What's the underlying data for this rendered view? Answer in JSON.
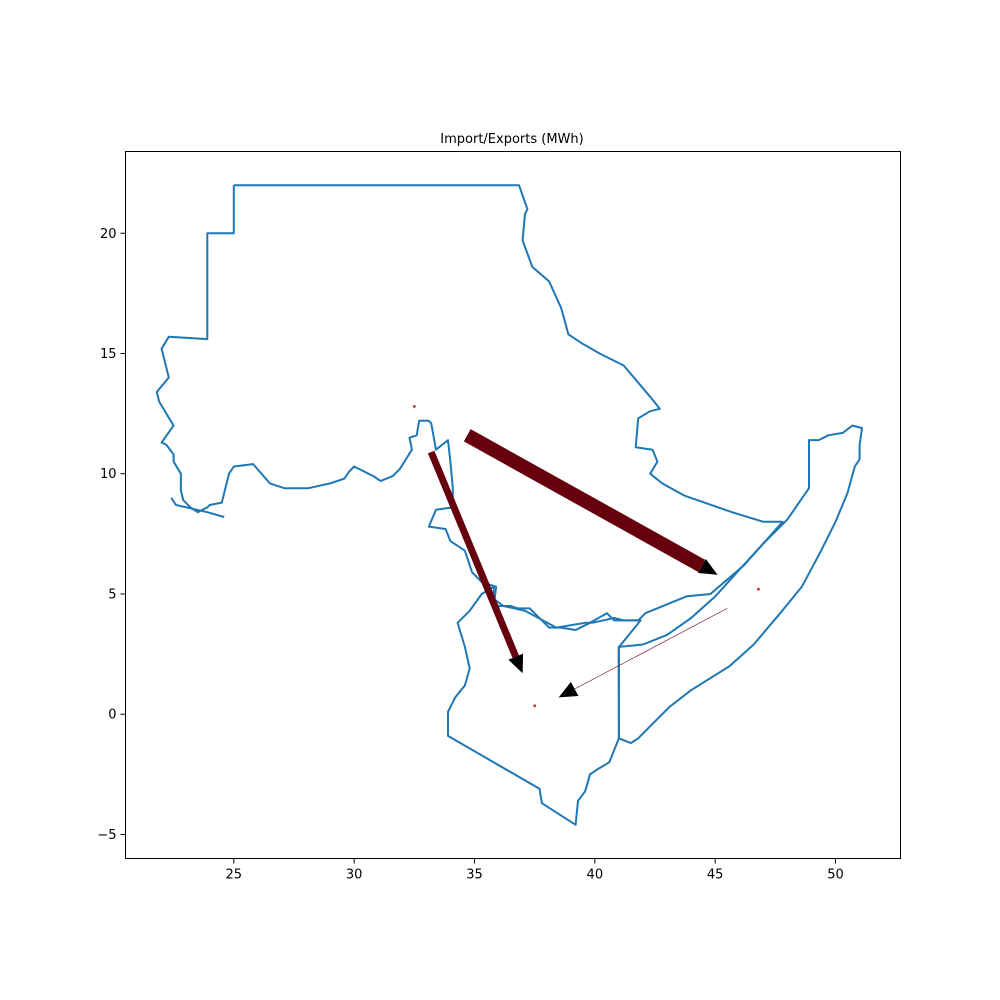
{
  "chart_data": {
    "type": "map",
    "title": "Import/Exports (MWh)",
    "xlim": [
      20.5,
      52.7
    ],
    "ylim": [
      -6.0,
      23.4
    ],
    "x_ticks": [
      {
        "value": 25,
        "label": "25"
      },
      {
        "value": 30,
        "label": "30"
      },
      {
        "value": 35,
        "label": "35"
      },
      {
        "value": 40,
        "label": "40"
      },
      {
        "value": 45,
        "label": "45"
      },
      {
        "value": 50,
        "label": "50"
      }
    ],
    "y_ticks": [
      {
        "value": -5,
        "label": "−5"
      },
      {
        "value": 0,
        "label": "0"
      },
      {
        "value": 5,
        "label": "5"
      },
      {
        "value": 10,
        "label": "10"
      },
      {
        "value": 15,
        "label": "15"
      },
      {
        "value": 20,
        "label": "20"
      }
    ],
    "boundary_color": "#1f77b4",
    "flow_color": "#67000d",
    "node_color": "#d62728",
    "boundaries": [
      {
        "name": "Sudan",
        "points": [
          [
            25,
            22
          ],
          [
            36.85,
            22
          ],
          [
            37.2,
            21
          ],
          [
            37.1,
            20.8
          ],
          [
            37.0,
            19.7
          ],
          [
            37.4,
            18.6
          ],
          [
            38.1,
            18.0
          ],
          [
            38.6,
            16.9
          ],
          [
            38.9,
            15.8
          ],
          [
            39.5,
            15.4
          ],
          [
            40.2,
            15.0
          ],
          [
            41.2,
            14.5
          ],
          [
            42.3,
            13.2
          ],
          [
            42.7,
            12.7
          ],
          [
            42.3,
            12.6
          ],
          [
            41.8,
            12.3
          ],
          [
            41.7,
            11.1
          ],
          [
            42.4,
            11.0
          ],
          [
            42.6,
            10.5
          ],
          [
            42.3,
            10.0
          ],
          [
            42.8,
            9.6
          ],
          [
            43.7,
            9.1
          ],
          [
            45.7,
            8.4
          ],
          [
            47.0,
            8.0
          ],
          [
            47.8,
            8.0
          ],
          [
            46.2,
            6.2
          ],
          [
            44.8,
            5.0
          ],
          [
            43.8,
            4.9
          ],
          [
            42.1,
            4.2
          ],
          [
            41.8,
            3.9
          ],
          [
            40.8,
            3.9
          ],
          [
            40.5,
            4.2
          ],
          [
            39.8,
            3.8
          ],
          [
            39.2,
            3.5
          ],
          [
            38.6,
            3.6
          ],
          [
            38.1,
            3.6
          ],
          [
            37.3,
            4.4
          ],
          [
            36.8,
            4.4
          ],
          [
            36.5,
            4.5
          ],
          [
            35.8,
            4.5
          ],
          [
            35.9,
            5.3
          ],
          [
            35.3,
            5.5
          ],
          [
            34.9,
            5.9
          ],
          [
            34.6,
            6.8
          ],
          [
            34.0,
            7.2
          ],
          [
            33.8,
            7.7
          ],
          [
            33.1,
            7.8
          ],
          [
            33.4,
            8.5
          ],
          [
            34.1,
            8.6
          ],
          [
            34.1,
            9.4
          ],
          [
            34.0,
            10.5
          ],
          [
            33.9,
            11.4
          ],
          [
            33.4,
            11.0
          ],
          [
            33.2,
            12.1
          ],
          [
            33.1,
            12.2
          ],
          [
            32.7,
            12.2
          ],
          [
            32.6,
            11.6
          ],
          [
            32.3,
            11.5
          ],
          [
            32.4,
            11.0
          ],
          [
            31.9,
            10.2
          ],
          [
            31.6,
            9.9
          ],
          [
            31.1,
            9.7
          ],
          [
            30.8,
            9.9
          ],
          [
            30.0,
            10.3
          ],
          [
            29.8,
            10.1
          ],
          [
            29.6,
            9.8
          ],
          [
            29.0,
            9.6
          ],
          [
            28.1,
            9.4
          ],
          [
            27.1,
            9.4
          ],
          [
            26.5,
            9.6
          ],
          [
            25.8,
            10.4
          ],
          [
            25.0,
            10.3
          ],
          [
            24.8,
            10.0
          ],
          [
            24.6,
            9.2
          ],
          [
            24.5,
            8.8
          ],
          [
            24.0,
            8.7
          ],
          [
            23.9,
            8.6
          ],
          [
            23.5,
            8.4
          ],
          [
            23.2,
            8.6
          ],
          [
            22.9,
            8.9
          ],
          [
            22.8,
            9.3
          ],
          [
            22.8,
            10.0
          ],
          [
            22.5,
            10.5
          ],
          [
            22.5,
            10.8
          ],
          [
            22.2,
            11.2
          ],
          [
            22.0,
            11.3
          ],
          [
            22.5,
            12.0
          ],
          [
            22.2,
            12.5
          ],
          [
            21.9,
            13.0
          ],
          [
            21.8,
            13.4
          ],
          [
            22.3,
            14.0
          ],
          [
            22.0,
            15.2
          ],
          [
            22.3,
            15.7
          ],
          [
            23.9,
            15.6
          ],
          [
            23.9,
            19.6
          ],
          [
            23.9,
            20.0
          ],
          [
            25.0,
            20.0
          ],
          [
            25,
            22
          ]
        ]
      },
      {
        "name": "South Sudan (partial)",
        "points": [
          [
            22.4,
            9.0
          ],
          [
            22.6,
            8.7
          ],
          [
            23.9,
            8.4
          ],
          [
            24.6,
            8.2
          ]
        ]
      },
      {
        "name": "Kenya",
        "points": [
          [
            41.0,
            -1.0
          ],
          [
            40.6,
            -2.0
          ],
          [
            40.1,
            -2.3
          ],
          [
            39.8,
            -2.5
          ],
          [
            39.6,
            -3.2
          ],
          [
            39.3,
            -3.6
          ],
          [
            39.2,
            -4.6
          ],
          [
            37.8,
            -3.7
          ],
          [
            37.7,
            -3.1
          ],
          [
            33.9,
            -0.9
          ],
          [
            33.9,
            0.1
          ],
          [
            34.2,
            0.7
          ],
          [
            34.6,
            1.2
          ],
          [
            34.8,
            1.9
          ],
          [
            34.6,
            2.8
          ],
          [
            34.3,
            3.8
          ],
          [
            34.8,
            4.3
          ],
          [
            35.3,
            5.0
          ],
          [
            35.8,
            5.3
          ],
          [
            35.8,
            4.8
          ],
          [
            36.2,
            4.5
          ],
          [
            37.1,
            4.3
          ],
          [
            38.4,
            3.6
          ],
          [
            39.6,
            3.8
          ],
          [
            39.9,
            3.8
          ],
          [
            40.8,
            4.0
          ],
          [
            41.2,
            3.9
          ],
          [
            41.9,
            3.9
          ],
          [
            40.99,
            2.78
          ],
          [
            41.0,
            -1.0
          ]
        ]
      },
      {
        "name": "Somalia",
        "points": [
          [
            41.0,
            -1.0
          ],
          [
            41.5,
            -1.2
          ],
          [
            41.8,
            -1.0
          ],
          [
            42.3,
            -0.5
          ],
          [
            43.1,
            0.3
          ],
          [
            44.0,
            1.0
          ],
          [
            45.6,
            2.0
          ],
          [
            46.6,
            2.9
          ],
          [
            47.7,
            4.2
          ],
          [
            48.6,
            5.3
          ],
          [
            49.4,
            6.8
          ],
          [
            50.0,
            8.0
          ],
          [
            50.5,
            9.2
          ],
          [
            50.8,
            10.3
          ],
          [
            51.0,
            10.6
          ],
          [
            51.0,
            11.2
          ],
          [
            51.1,
            11.9
          ],
          [
            50.7,
            12.0
          ],
          [
            50.3,
            11.7
          ],
          [
            49.7,
            11.6
          ],
          [
            49.3,
            11.4
          ],
          [
            48.9,
            11.4
          ],
          [
            48.9,
            9.4
          ],
          [
            48.0,
            8.1
          ],
          [
            47.0,
            7.1
          ],
          [
            46.0,
            6.0
          ],
          [
            45.0,
            4.9
          ],
          [
            44.0,
            4.0
          ],
          [
            43.0,
            3.3
          ],
          [
            42.0,
            2.9
          ],
          [
            41.0,
            2.8
          ],
          [
            41.0,
            -1.0
          ]
        ]
      }
    ],
    "nodes": [
      {
        "x": 32.5,
        "y": 12.8
      },
      {
        "x": 46.8,
        "y": 5.2
      },
      {
        "x": 37.5,
        "y": 0.35
      }
    ],
    "flows": [
      {
        "x0": 34.7,
        "y0": 11.6,
        "x1": 45.1,
        "y1": 5.8,
        "width": 14
      },
      {
        "x0": 33.2,
        "y0": 10.9,
        "x1": 37.0,
        "y1": 1.7,
        "width": 7
      },
      {
        "x0": 45.5,
        "y0": 4.4,
        "x1": 38.5,
        "y1": 0.7,
        "width": 0.6
      }
    ]
  }
}
